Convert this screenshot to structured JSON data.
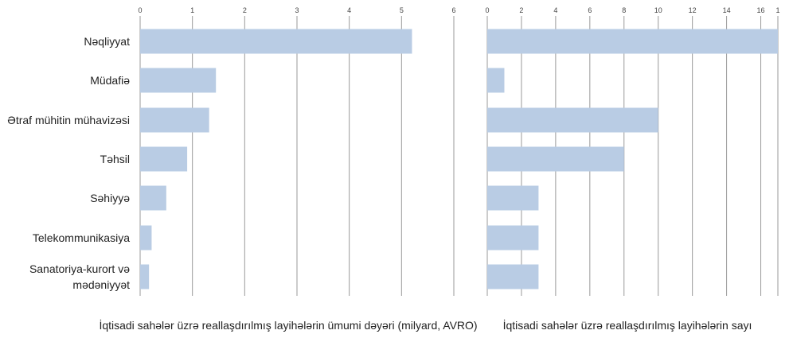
{
  "chart_data": [
    {
      "type": "bar",
      "orientation": "horizontal",
      "categories": [
        "Nəqliyyat",
        "Müdafiə",
        "Ətraf mühitin mühavizəsi",
        "Təhsil",
        "Səhiyyə",
        "Telekommunikasiya",
        "Sanatoriya-kurort və mədəniyyət"
      ],
      "values": [
        5.2,
        1.45,
        1.32,
        0.9,
        0.5,
        0.22,
        0.17
      ],
      "xlim": [
        0,
        6
      ],
      "xticks": [
        "0",
        "1",
        "2",
        "3",
        "4",
        "5",
        "6"
      ],
      "xlabel": "İqtisadi sahələr üzrə reallaşdırılmış layihələrin ümumi dəyəri (milyard, AVRO)",
      "grid": "vertical",
      "bar_color": "#b9cce4"
    },
    {
      "type": "bar",
      "orientation": "horizontal",
      "categories": [
        "Nəqliyyat",
        "Müdafiə",
        "Ətraf mühitin mühavizəsi",
        "Təhsil",
        "Səhiyyə",
        "Telekommunikasiya",
        "Sanatoriya-kurort və mədəniyyət"
      ],
      "values": [
        17,
        1,
        10,
        8,
        3,
        3,
        3
      ],
      "xlim": [
        0,
        17
      ],
      "xticks": [
        "0",
        "2",
        "4",
        "6",
        "8",
        "10",
        "12",
        "14",
        "16",
        "1"
      ],
      "xlabel": "İqtisadi sahələr üzrə reallaşdırılmış layihələrin sayı",
      "grid": "vertical",
      "bar_color": "#b9cce4"
    }
  ],
  "category_labels": [
    [
      "Nəqliyyat"
    ],
    [
      "Müdafiə"
    ],
    [
      "Ətraf mühitin mühavizəsi"
    ],
    [
      "Təhsil"
    ],
    [
      "Səhiyyə"
    ],
    [
      "Telekommunikasiya"
    ],
    [
      "Sanatoriya-kurort və",
      "mədəniyyət"
    ]
  ]
}
